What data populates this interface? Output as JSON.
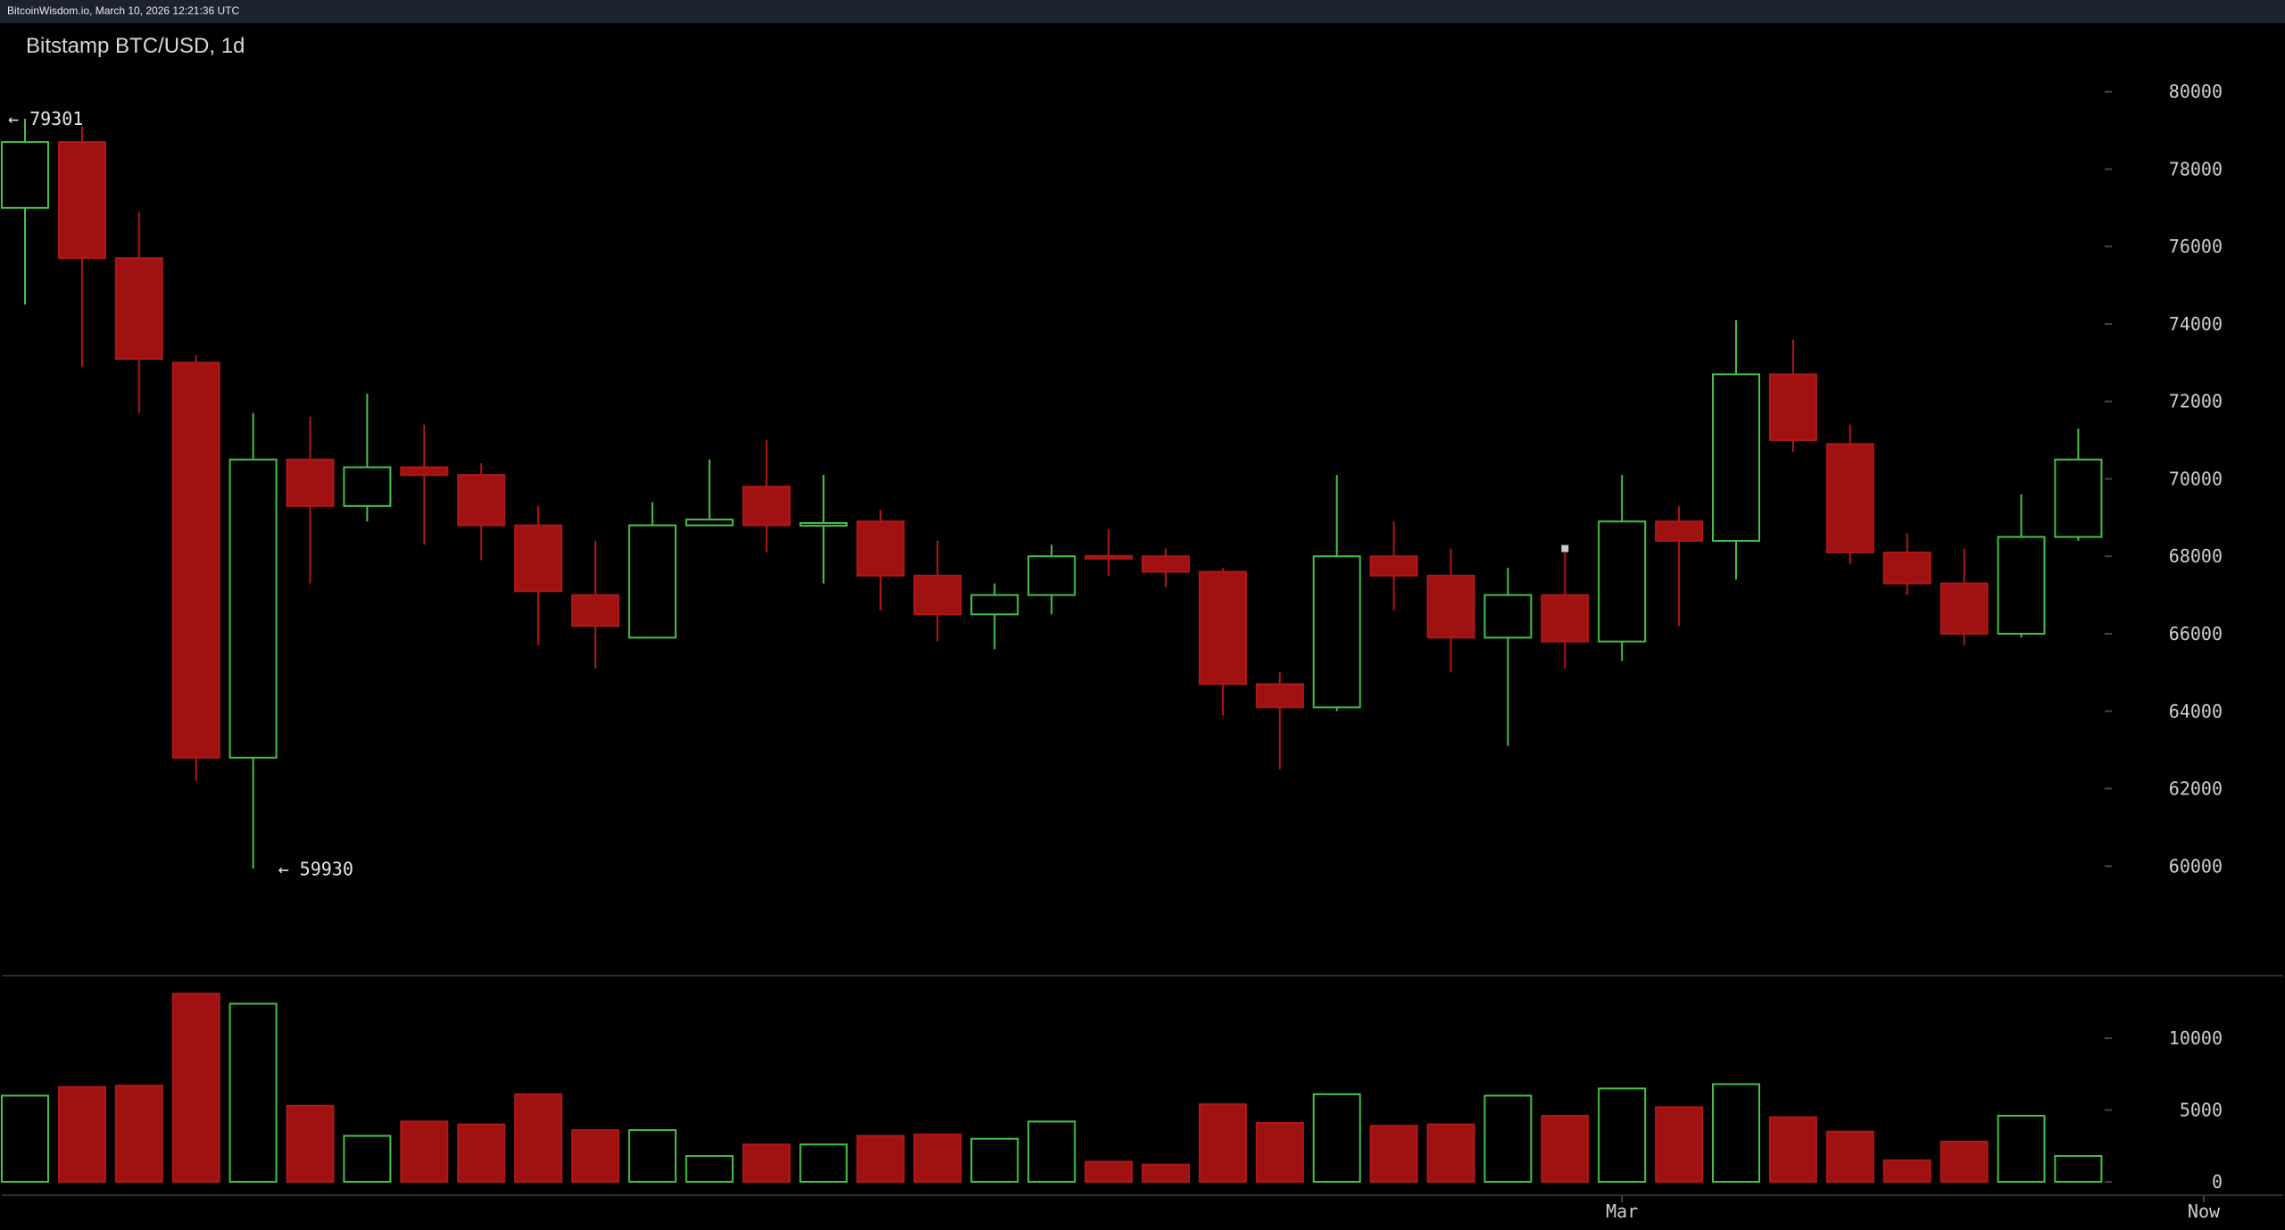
{
  "window": {
    "header": "BitcoinWisdom.io, March 10, 2026 12:21:36 UTC"
  },
  "chart_data": {
    "type": "candlestick",
    "title": "Bitstamp BTC/USD, 1d",
    "colors": {
      "up": "#46c046",
      "down": "#a01212",
      "down_fill": "#a01212",
      "grid_text": "#cfcfcf"
    },
    "price_axis": {
      "ylim": [
        58600,
        80800
      ],
      "ticks": [
        80000,
        78000,
        76000,
        74000,
        72000,
        70000,
        68000,
        66000,
        64000,
        62000,
        60000
      ],
      "tick_labels": [
        "80000",
        "78000",
        "76000",
        "74000",
        "72000",
        "70000",
        "68000",
        "66000",
        "64000",
        "62000",
        "60000"
      ]
    },
    "volume_axis": {
      "ylim": [
        0,
        13800
      ],
      "ticks": [
        10000,
        5000,
        0
      ],
      "tick_labels": [
        "10000",
        "5000",
        "0"
      ]
    },
    "x_axis": {
      "labels": [
        {
          "text": "Mar",
          "index": 28
        },
        {
          "text": "Now",
          "index": 38.2
        }
      ]
    },
    "annotations": {
      "high_label": "← 79301",
      "high_value": 79301,
      "high_index": 0,
      "low_label": "← 59930",
      "low_value": 59930,
      "low_index": 4
    },
    "candles": [
      {
        "o": 77000,
        "h": 79301,
        "l": 74500,
        "c": 78700,
        "v": 6000
      },
      {
        "o": 78700,
        "h": 79100,
        "l": 72900,
        "c": 75700,
        "v": 6600
      },
      {
        "o": 75700,
        "h": 76900,
        "l": 71700,
        "c": 73100,
        "v": 6700
      },
      {
        "o": 73000,
        "h": 73200,
        "l": 62200,
        "c": 62800,
        "v": 13100
      },
      {
        "o": 62800,
        "h": 71700,
        "l": 59930,
        "c": 70500,
        "v": 12400
      },
      {
        "o": 70500,
        "h": 71600,
        "l": 67300,
        "c": 69300,
        "v": 5300
      },
      {
        "o": 69300,
        "h": 72200,
        "l": 68900,
        "c": 70300,
        "v": 3200
      },
      {
        "o": 70300,
        "h": 71400,
        "l": 68300,
        "c": 70100,
        "v": 4200
      },
      {
        "o": 70100,
        "h": 70400,
        "l": 67900,
        "c": 68800,
        "v": 4000
      },
      {
        "o": 68800,
        "h": 69300,
        "l": 65700,
        "c": 67100,
        "v": 6100
      },
      {
        "o": 67000,
        "h": 68400,
        "l": 65100,
        "c": 66200,
        "v": 3600
      },
      {
        "o": 65900,
        "h": 69400,
        "l": 65900,
        "c": 68800,
        "v": 3600
      },
      {
        "o": 68800,
        "h": 70500,
        "l": 68800,
        "c": 68950,
        "v": 1800
      },
      {
        "o": 69800,
        "h": 71000,
        "l": 68100,
        "c": 68800,
        "v": 2600
      },
      {
        "o": 68800,
        "h": 70100,
        "l": 67300,
        "c": 68850,
        "v": 2600
      },
      {
        "o": 68900,
        "h": 69200,
        "l": 66600,
        "c": 67500,
        "v": 3200
      },
      {
        "o": 67500,
        "h": 68400,
        "l": 65800,
        "c": 66500,
        "v": 3300
      },
      {
        "o": 66500,
        "h": 67300,
        "l": 65600,
        "c": 67000,
        "v": 3000
      },
      {
        "o": 67000,
        "h": 68300,
        "l": 66500,
        "c": 68000,
        "v": 4200
      },
      {
        "o": 68000,
        "h": 68700,
        "l": 67500,
        "c": 67950,
        "v": 1400
      },
      {
        "o": 68000,
        "h": 68200,
        "l": 67200,
        "c": 67600,
        "v": 1200
      },
      {
        "o": 67600,
        "h": 67700,
        "l": 63900,
        "c": 64700,
        "v": 5400
      },
      {
        "o": 64700,
        "h": 65000,
        "l": 62500,
        "c": 64100,
        "v": 4100
      },
      {
        "o": 64100,
        "h": 70100,
        "l": 64000,
        "c": 68000,
        "v": 6100
      },
      {
        "o": 68000,
        "h": 68900,
        "l": 66600,
        "c": 67500,
        "v": 3900
      },
      {
        "o": 67500,
        "h": 68200,
        "l": 65000,
        "c": 65900,
        "v": 4000
      },
      {
        "o": 65900,
        "h": 67700,
        "l": 63100,
        "c": 67000,
        "v": 6000
      },
      {
        "o": 67000,
        "h": 68100,
        "l": 65100,
        "c": 65800,
        "v": 4600
      },
      {
        "o": 65800,
        "h": 70100,
        "l": 65300,
        "c": 68900,
        "v": 6500
      },
      {
        "o": 68900,
        "h": 69300,
        "l": 66200,
        "c": 68400,
        "v": 5200
      },
      {
        "o": 68400,
        "h": 74100,
        "l": 67400,
        "c": 72700,
        "v": 6800
      },
      {
        "o": 72700,
        "h": 73600,
        "l": 70700,
        "c": 71000,
        "v": 4500
      },
      {
        "o": 70900,
        "h": 71400,
        "l": 67800,
        "c": 68100,
        "v": 3500
      },
      {
        "o": 68100,
        "h": 68600,
        "l": 67000,
        "c": 67300,
        "v": 1500
      },
      {
        "o": 67300,
        "h": 68200,
        "l": 65700,
        "c": 66000,
        "v": 2800
      },
      {
        "o": 66000,
        "h": 69600,
        "l": 65900,
        "c": 68500,
        "v": 4600
      },
      {
        "o": 68500,
        "h": 71300,
        "l": 68400,
        "c": 70500,
        "v": 1800
      }
    ]
  }
}
